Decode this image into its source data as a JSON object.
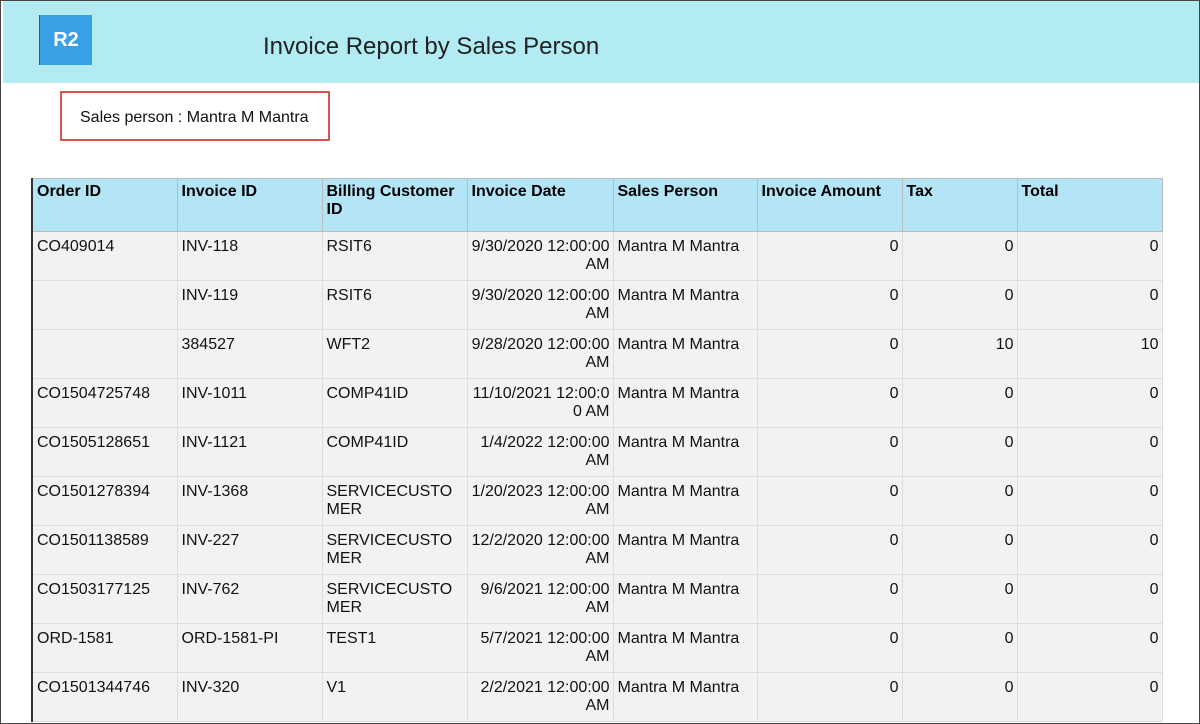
{
  "header": {
    "logo": "R2",
    "title": "Invoice Report by Sales Person"
  },
  "filter": {
    "label": "Sales person : Mantra M Mantra"
  },
  "table": {
    "columns": [
      "Order ID",
      "Invoice ID",
      "Billing Customer ID",
      "Invoice Date",
      "Sales Person",
      "Invoice Amount",
      "Tax",
      "Total"
    ],
    "rows": [
      [
        "CO409014",
        "INV-118",
        "RSIT6",
        "9/30/2020 12:00:00 AM",
        "Mantra M Mantra",
        "0",
        "0",
        "0"
      ],
      [
        "",
        "INV-119",
        "RSIT6",
        "9/30/2020 12:00:00 AM",
        "Mantra M Mantra",
        "0",
        "0",
        "0"
      ],
      [
        "",
        "384527",
        "WFT2",
        "9/28/2020 12:00:00 AM",
        "Mantra M Mantra",
        "0",
        "10",
        "10"
      ],
      [
        "CO1504725748",
        "INV-1011",
        "COMP41ID",
        "11/10/2021 12:00:00 AM",
        "Mantra M Mantra",
        "0",
        "0",
        "0"
      ],
      [
        "CO1505128651",
        "INV-1121",
        "COMP41ID",
        "1/4/2022 12:00:00 AM",
        "Mantra M Mantra",
        "0",
        "0",
        "0"
      ],
      [
        "CO1501278394",
        "INV-1368",
        "SERVICECUSTOMER",
        "1/20/2023 12:00:00 AM",
        "Mantra M Mantra",
        "0",
        "0",
        "0"
      ],
      [
        "CO1501138589",
        "INV-227",
        "SERVICECUSTOMER",
        "12/2/2020 12:00:00 AM",
        "Mantra M Mantra",
        "0",
        "0",
        "0"
      ],
      [
        "CO1503177125",
        "INV-762",
        "SERVICECUSTOMER",
        "9/6/2021 12:00:00 AM",
        "Mantra M Mantra",
        "0",
        "0",
        "0"
      ],
      [
        "ORD-1581",
        "ORD-1581-PI",
        "TEST1",
        "5/7/2021 12:00:00 AM",
        "Mantra M Mantra",
        "0",
        "0",
        "0"
      ],
      [
        "CO1501344746",
        "INV-320",
        "V1",
        "2/2/2021 12:00:00 AM",
        "Mantra M Mantra",
        "0",
        "0",
        "0"
      ]
    ]
  }
}
